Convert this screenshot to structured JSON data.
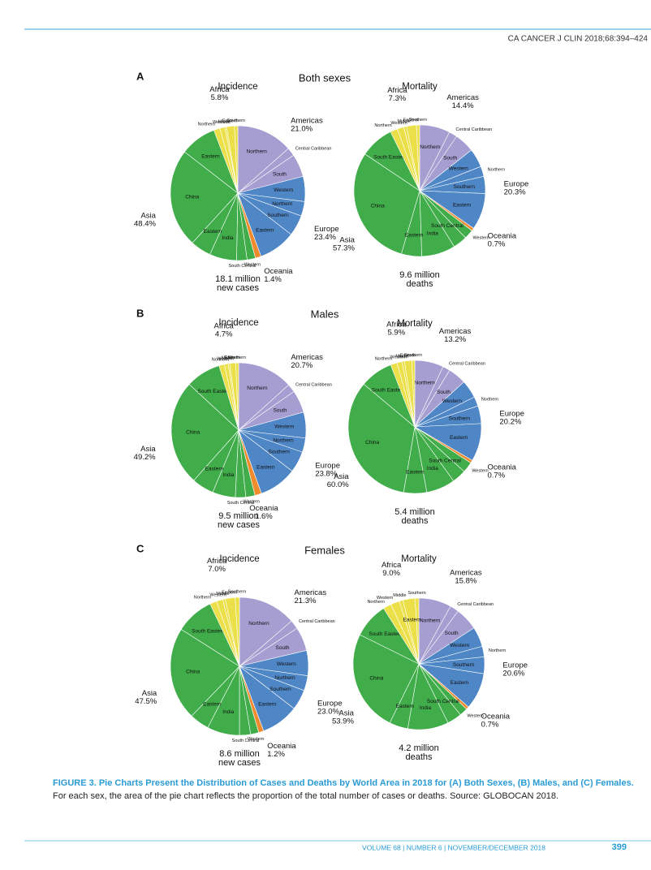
{
  "header": "CA CANCER J CLIN 2018;68:394–424",
  "panels": [
    {
      "letter": "A",
      "title": "Both sexes"
    },
    {
      "letter": "B",
      "title": "Males"
    },
    {
      "letter": "C",
      "title": "Females"
    }
  ],
  "chart_data": [
    {
      "type": "pie",
      "title": "Incidence",
      "total_label": [
        "18.1 million",
        "new cases"
      ],
      "groups": [
        {
          "name": "Americas",
          "value": 21.0,
          "value_label": "21.0%",
          "color": "#a69dd1",
          "slice_names": [
            "Northern",
            "Central Caribbean",
            "South"
          ],
          "slice_values": [
            13.5,
            2.0,
            5.5
          ]
        },
        {
          "name": "Europe",
          "value": 23.4,
          "value_label": "23.4%",
          "color": "#4e86c6",
          "slice_names": [
            "Western",
            "Northern",
            "Southern",
            "Eastern"
          ],
          "slice_values": [
            6.0,
            3.5,
            5.0,
            8.9
          ]
        },
        {
          "name": "Oceania",
          "value": 1.4,
          "value_label": "1.4%",
          "color": "#ef8a2d",
          "slice_names": [],
          "slice_values": []
        },
        {
          "name": "Asia",
          "value": 48.4,
          "value_label": "48.4%",
          "color": "#40ad4a",
          "slice_names": [
            "Western",
            "South Central",
            "India",
            "Eastern",
            "China",
            "Eastern"
          ],
          "slice_values": [
            2.0,
            2.5,
            6.5,
            5.0,
            23.7,
            8.7
          ]
        },
        {
          "name": "Africa",
          "value": 5.8,
          "value_label": "5.8%",
          "color": "#ebe04a",
          "slice_names": [
            "Northern",
            "Western",
            "Middle",
            "Eastern",
            "Southern"
          ],
          "slice_values": [
            1.5,
            1.2,
            0.4,
            1.9,
            0.8
          ]
        }
      ]
    },
    {
      "type": "pie",
      "title": "Mortality",
      "total_label": [
        "9.6 million",
        "deaths"
      ],
      "groups": [
        {
          "name": "Americas",
          "value": 14.4,
          "value_label": "14.4%",
          "color": "#a69dd1",
          "slice_names": [
            "Northern",
            "Central Caribbean",
            "South"
          ],
          "slice_values": [
            7.5,
            2.0,
            4.9
          ]
        },
        {
          "name": "Europe",
          "value": 20.3,
          "value_label": "20.3%",
          "color": "#4e86c6",
          "slice_names": [
            "Western",
            "Northern",
            "Southern",
            "Eastern"
          ],
          "slice_values": [
            4.6,
            2.5,
            4.2,
            9.0
          ]
        },
        {
          "name": "Oceania",
          "value": 0.7,
          "value_label": "0.7%",
          "color": "#ef8a2d",
          "slice_names": [],
          "slice_values": []
        },
        {
          "name": "Asia",
          "value": 57.3,
          "value_label": "57.3%",
          "color": "#40ad4a",
          "slice_names": [
            "Western",
            "South Central",
            "India",
            "Eastern",
            "China",
            "South Eastern"
          ],
          "slice_values": [
            2.3,
            3.5,
            8.3,
            5.0,
            29.9,
            8.3
          ]
        },
        {
          "name": "Africa",
          "value": 7.3,
          "value_label": "7.3%",
          "color": "#ebe04a",
          "slice_names": [
            "Northern",
            "Western",
            "Middle",
            "Eastern",
            "Southern"
          ],
          "slice_values": [
            1.8,
            1.6,
            0.7,
            2.4,
            0.8
          ]
        }
      ]
    },
    {
      "type": "pie",
      "title": "Incidence",
      "total_label": [
        "9.5 million",
        "new cases"
      ],
      "groups": [
        {
          "name": "Americas",
          "value": 20.7,
          "value_label": "20.7%",
          "color": "#a69dd1",
          "slice_names": [
            "Northern",
            "Central Caribbean",
            "South"
          ],
          "slice_values": [
            13.3,
            2.0,
            5.4
          ]
        },
        {
          "name": "Europe",
          "value": 23.8,
          "value_label": "23.8%",
          "color": "#4e86c6",
          "slice_names": [
            "Western",
            "Northern",
            "Southern",
            "Eastern"
          ],
          "slice_values": [
            6.2,
            3.4,
            5.1,
            9.1
          ]
        },
        {
          "name": "Oceania",
          "value": 1.6,
          "value_label": "1.6%",
          "color": "#ef8a2d",
          "slice_names": [],
          "slice_values": []
        },
        {
          "name": "Asia",
          "value": 49.2,
          "value_label": "49.2%",
          "color": "#40ad4a",
          "slice_names": [
            "Western",
            "South Central",
            "India",
            "Eastern",
            "China",
            "South Eastern"
          ],
          "slice_values": [
            2.2,
            2.5,
            5.5,
            5.3,
            25.3,
            8.4
          ]
        },
        {
          "name": "Africa",
          "value": 4.7,
          "value_label": "4.7%",
          "color": "#ebe04a",
          "slice_names": [
            "Northern",
            "Western",
            "Middle",
            "Eastern",
            "Southern"
          ],
          "slice_values": [
            1.3,
            0.9,
            0.4,
            1.4,
            0.7
          ]
        }
      ]
    },
    {
      "type": "pie",
      "title": "Mortality",
      "total_label": [
        "5.4 million",
        "deaths"
      ],
      "groups": [
        {
          "name": "Americas",
          "value": 13.2,
          "value_label": "13.2%",
          "color": "#a69dd1",
          "slice_names": [
            "Northern",
            "Central Caribbean",
            "South"
          ],
          "slice_values": [
            7.0,
            1.8,
            4.4
          ]
        },
        {
          "name": "Europe",
          "value": 20.2,
          "value_label": "20.2%",
          "color": "#4e86c6",
          "slice_names": [
            "Western",
            "Northern",
            "Southern",
            "Eastern"
          ],
          "slice_values": [
            4.4,
            2.3,
            4.3,
            9.2
          ]
        },
        {
          "name": "Oceania",
          "value": 0.7,
          "value_label": "0.7%",
          "color": "#ef8a2d",
          "slice_names": [],
          "slice_values": []
        },
        {
          "name": "Asia",
          "value": 60.0,
          "value_label": "60.0%",
          "color": "#40ad4a",
          "slice_names": [
            "Western",
            "South Central",
            "India",
            "Eastern",
            "China",
            "South Eastern"
          ],
          "slice_values": [
            2.6,
            3.4,
            7.0,
            5.6,
            33.4,
            8.0
          ]
        },
        {
          "name": "Africa",
          "value": 5.9,
          "value_label": "5.9%",
          "color": "#ebe04a",
          "slice_names": [
            "Northern",
            "Western",
            "Middle",
            "Eastern",
            "Southern"
          ],
          "slice_values": [
            1.6,
            1.2,
            0.6,
            1.8,
            0.7
          ]
        }
      ]
    },
    {
      "type": "pie",
      "title": "Incidence",
      "total_label": [
        "8.6 million",
        "new cases"
      ],
      "groups": [
        {
          "name": "Americas",
          "value": 21.3,
          "value_label": "21.3%",
          "color": "#a69dd1",
          "slice_names": [
            "Northern",
            "Central Caribbean",
            "South"
          ],
          "slice_values": [
            13.6,
            2.1,
            5.6
          ]
        },
        {
          "name": "Europe",
          "value": 23.0,
          "value_label": "23.0%",
          "color": "#4e86c6",
          "slice_names": [
            "Western",
            "Northern",
            "Southern",
            "Eastern"
          ],
          "slice_values": [
            5.9,
            3.5,
            4.8,
            8.8
          ]
        },
        {
          "name": "Oceania",
          "value": 1.2,
          "value_label": "1.2%",
          "color": "#ef8a2d",
          "slice_names": [],
          "slice_values": []
        },
        {
          "name": "Asia",
          "value": 47.5,
          "value_label": "47.5%",
          "color": "#40ad4a",
          "slice_names": [
            "Western",
            "South Central",
            "India",
            "Eastern",
            "China",
            "South Eastern"
          ],
          "slice_values": [
            1.9,
            2.6,
            7.6,
            4.6,
            21.8,
            9.0
          ]
        },
        {
          "name": "Africa",
          "value": 7.0,
          "value_label": "7.0%",
          "color": "#ebe04a",
          "slice_names": [
            "Northern",
            "Western",
            "Middle",
            "Eastern",
            "Southern"
          ],
          "slice_values": [
            1.6,
            1.5,
            0.6,
            2.3,
            1.0
          ]
        }
      ]
    },
    {
      "type": "pie",
      "title": "Mortality",
      "total_label": [
        "4.2 million",
        "deaths"
      ],
      "groups": [
        {
          "name": "Americas",
          "value": 15.8,
          "value_label": "15.8%",
          "color": "#a69dd1",
          "slice_names": [
            "Northern",
            "Central Caribbean",
            "South"
          ],
          "slice_values": [
            8.0,
            2.2,
            5.6
          ]
        },
        {
          "name": "Europe",
          "value": 20.6,
          "value_label": "20.6%",
          "color": "#4e86c6",
          "slice_names": [
            "Western",
            "Northern",
            "Southern",
            "Eastern"
          ],
          "slice_values": [
            4.9,
            2.6,
            4.1,
            9.0
          ]
        },
        {
          "name": "Oceania",
          "value": 0.7,
          "value_label": "0.7%",
          "color": "#ef8a2d",
          "slice_names": [],
          "slice_values": []
        },
        {
          "name": "Asia",
          "value": 53.9,
          "value_label": "53.9%",
          "color": "#40ad4a",
          "slice_names": [
            "Western",
            "South Central",
            "India",
            "Eastern",
            "China",
            "South Eastern"
          ],
          "slice_values": [
            2.0,
            3.6,
            10.0,
            4.6,
            25.0,
            8.7
          ]
        },
        {
          "name": "Africa",
          "value": 9.0,
          "value_label": "9.0%",
          "color": "#ebe04a",
          "slice_names": [
            "Northern",
            "Western",
            "Middle",
            "Eastern",
            "Southern"
          ],
          "slice_values": [
            2.0,
            2.2,
            0.9,
            3.0,
            0.9
          ]
        }
      ]
    }
  ],
  "caption_title": "FIGURE 3. Pie Charts Present the Distribution of Cases and Deaths by World Area in 2018 for (A) Both Sexes, (B) Males, and (C) Females.",
  "caption_text": "For each sex, the area of the pie chart reflects the proportion of the total number of cases or deaths. Source: GLOBOCAN 2018.",
  "footer": "VOLUME 68 | NUMBER 6 | NOVEMBER/DECEMBER 2018",
  "page_number": "399"
}
